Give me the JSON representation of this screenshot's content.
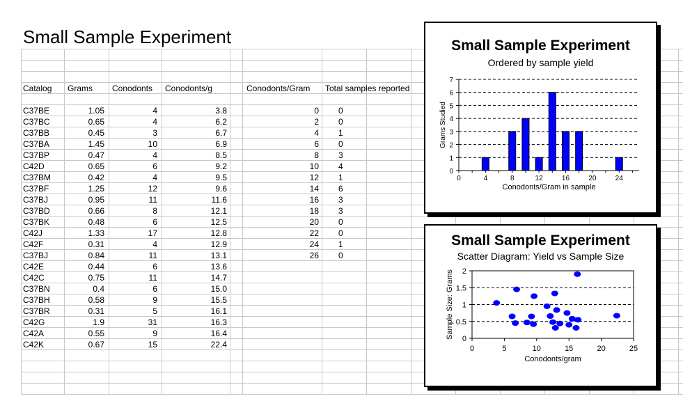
{
  "sheet": {
    "title": "Small Sample Experiment",
    "headers": [
      "Catalog",
      "Grams",
      "Conodonts",
      "Conodonts/g"
    ],
    "rows": [
      [
        "C37BE",
        "1.05",
        "4",
        "3.8"
      ],
      [
        "C37BC",
        "0.65",
        "4",
        "6.2"
      ],
      [
        "C37BB",
        "0.45",
        "3",
        "6.7"
      ],
      [
        "C37BA",
        "1.45",
        "10",
        "6.9"
      ],
      [
        "C37BP",
        "0.47",
        "4",
        "8.5"
      ],
      [
        "C42D",
        "0.65",
        "6",
        "9.2"
      ],
      [
        "C37BM",
        "0.42",
        "4",
        "9.5"
      ],
      [
        "C37BF",
        "1.25",
        "12",
        "9.6"
      ],
      [
        "C37BJ",
        "0.95",
        "11",
        "11.6"
      ],
      [
        "C37BD",
        "0.66",
        "8",
        "12.1"
      ],
      [
        "C37BK",
        "0.48",
        "6",
        "12.5"
      ],
      [
        "C42J",
        "1.33",
        "17",
        "12.8"
      ],
      [
        "C42F",
        "0.31",
        "4",
        "12.9"
      ],
      [
        "C37BJ",
        "0.84",
        "11",
        "13.1"
      ],
      [
        "C42E",
        "0.44",
        "6",
        "13.6"
      ],
      [
        "C42C",
        "0.75",
        "11",
        "14.7"
      ],
      [
        "C37BN",
        "0.4",
        "6",
        "15.0"
      ],
      [
        "C37BH",
        "0.58",
        "9",
        "15.5"
      ],
      [
        "C37BR",
        "0.31",
        "5",
        "16.1"
      ],
      [
        "C42G",
        "1.9",
        "31",
        "16.3"
      ],
      [
        "C42A",
        "0.55",
        "9",
        "16.4"
      ],
      [
        "C42K",
        "0.67",
        "15",
        "22.4"
      ]
    ],
    "freq_headers": [
      "Conodonts/Gram",
      "Total samples reported"
    ],
    "freq_rows": [
      [
        "0",
        "0"
      ],
      [
        "2",
        "0"
      ],
      [
        "4",
        "1"
      ],
      [
        "6",
        "0"
      ],
      [
        "8",
        "3"
      ],
      [
        "10",
        "4"
      ],
      [
        "12",
        "1"
      ],
      [
        "14",
        "6"
      ],
      [
        "16",
        "3"
      ],
      [
        "18",
        "3"
      ],
      [
        "20",
        "0"
      ],
      [
        "22",
        "0"
      ],
      [
        "24",
        "1"
      ],
      [
        "26",
        "0"
      ]
    ]
  },
  "chart_data": [
    {
      "type": "bar",
      "title": "Small Sample Experiment",
      "subtitle": "Ordered by sample yield",
      "xlabel": "Conodonts/Gram in sample",
      "ylabel": "Grams Studied",
      "x": [
        0,
        2,
        4,
        6,
        8,
        10,
        12,
        14,
        16,
        18,
        20,
        22,
        24,
        26
      ],
      "values": [
        0,
        0,
        1,
        0,
        3,
        4,
        1,
        6,
        3,
        3,
        0,
        0,
        1,
        0
      ],
      "xticks": [
        0,
        4,
        8,
        12,
        16,
        20,
        24
      ],
      "ylim": [
        0,
        7
      ],
      "yticks": [
        0,
        1,
        2,
        3,
        4,
        5,
        6,
        7
      ],
      "grid": "horizontal dashed",
      "bar_color": "#0000FF"
    },
    {
      "type": "scatter",
      "title": "Small Sample Experiment",
      "subtitle": "Scatter Diagram: Yield vs Sample Size",
      "xlabel": "Conodonts/gram",
      "ylabel": "Sample Size: Grams",
      "xlim": [
        0,
        25
      ],
      "ylim": [
        0,
        2
      ],
      "xticks": [
        0,
        5,
        10,
        15,
        20,
        25
      ],
      "yticks": [
        0,
        0.5,
        1,
        1.5,
        2
      ],
      "grid": "horizontal dashed",
      "point_color": "#0000FF",
      "points": [
        [
          3.8,
          1.05
        ],
        [
          6.2,
          0.65
        ],
        [
          6.7,
          0.45
        ],
        [
          6.9,
          1.45
        ],
        [
          8.5,
          0.47
        ],
        [
          9.2,
          0.65
        ],
        [
          9.5,
          0.42
        ],
        [
          9.6,
          1.25
        ],
        [
          11.6,
          0.95
        ],
        [
          12.1,
          0.66
        ],
        [
          12.5,
          0.48
        ],
        [
          12.8,
          1.33
        ],
        [
          12.9,
          0.31
        ],
        [
          13.1,
          0.84
        ],
        [
          13.6,
          0.44
        ],
        [
          14.7,
          0.75
        ],
        [
          15.0,
          0.4
        ],
        [
          15.5,
          0.58
        ],
        [
          16.1,
          0.31
        ],
        [
          16.3,
          1.9
        ],
        [
          16.4,
          0.55
        ],
        [
          22.4,
          0.67
        ]
      ]
    }
  ]
}
